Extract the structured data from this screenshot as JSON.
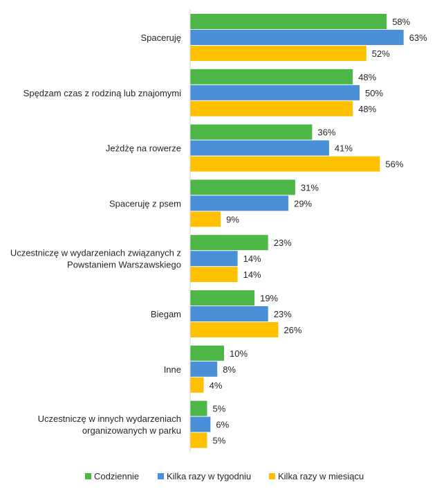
{
  "chart_data": {
    "type": "bar",
    "orientation": "horizontal",
    "categories": [
      [
        "Spaceruję"
      ],
      [
        "Spędzam czas z rodziną lub znajomymi"
      ],
      [
        "Jeżdżę na rowerze"
      ],
      [
        "Spaceruję z psem"
      ],
      [
        "Uczestniczę w wydarzeniach związanych z",
        "Powstaniem Warszawskiego"
      ],
      [
        "Biegam"
      ],
      [
        "Inne"
      ],
      [
        "Uczestniczę w innych wydarzeniach",
        "organizowanych w parku"
      ]
    ],
    "series": [
      {
        "name": "Codziennie",
        "color": "#4db848",
        "values": [
          58,
          48,
          36,
          31,
          23,
          19,
          10,
          5
        ]
      },
      {
        "name": "Kilka razy w tygodniu",
        "color": "#4a90d9",
        "values": [
          63,
          50,
          41,
          29,
          14,
          23,
          8,
          6
        ]
      },
      {
        "name": "Kilka razy w miesiącu",
        "color": "#ffc000",
        "values": [
          52,
          48,
          56,
          9,
          14,
          26,
          4,
          5
        ]
      }
    ],
    "value_suffix": "%",
    "xlim": [
      0,
      100
    ],
    "grid": false,
    "legend_position": "bottom"
  }
}
